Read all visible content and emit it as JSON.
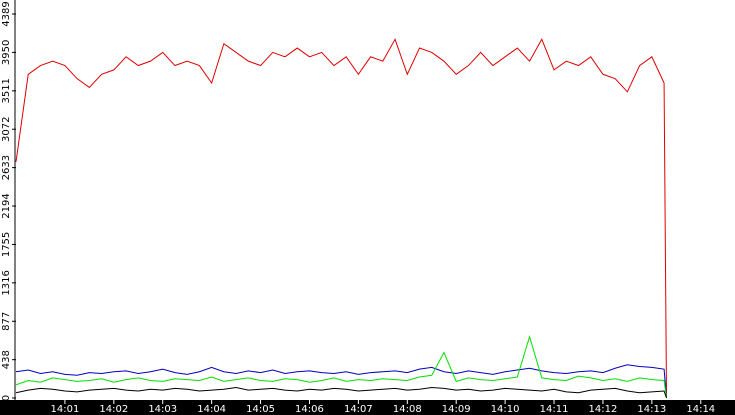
{
  "chart_data": {
    "type": "line",
    "x": [
      0,
      0.25,
      0.5,
      0.75,
      1,
      1.25,
      1.5,
      1.75,
      2,
      2.25,
      2.5,
      2.75,
      3,
      3.25,
      3.5,
      3.75,
      4,
      4.25,
      4.5,
      4.75,
      5,
      5.25,
      5.5,
      5.75,
      6,
      6.25,
      6.5,
      6.75,
      7,
      7.25,
      7.5,
      7.75,
      8,
      8.25,
      8.5,
      8.75,
      9,
      9.25,
      9.5,
      9.75,
      10,
      10.25,
      10.5,
      10.75,
      11,
      11.25,
      11.5,
      11.75,
      12,
      12.25,
      12.5,
      12.75,
      13,
      13.25,
      13.3
    ],
    "series": [
      {
        "color": "#e00000",
        "values": [
          2700,
          3700,
          3800,
          3850,
          3800,
          3650,
          3550,
          3700,
          3750,
          3900,
          3800,
          3850,
          3950,
          3800,
          3850,
          3800,
          3600,
          4050,
          3950,
          3850,
          3800,
          3950,
          3900,
          4000,
          3900,
          3950,
          3800,
          3900,
          3700,
          3900,
          3850,
          4100,
          3700,
          4000,
          3950,
          3850,
          3700,
          3800,
          3950,
          3800,
          3900,
          4000,
          3850,
          4100,
          3750,
          3850,
          3800,
          3900,
          3700,
          3650,
          3500,
          3800,
          3900,
          3600,
          0
        ]
      },
      {
        "color": "#0000c0",
        "values": [
          300,
          320,
          280,
          300,
          270,
          260,
          290,
          280,
          300,
          310,
          280,
          300,
          330,
          290,
          270,
          300,
          350,
          300,
          280,
          310,
          290,
          320,
          280,
          300,
          310,
          290,
          280,
          300,
          270,
          290,
          300,
          310,
          290,
          330,
          350,
          300,
          280,
          310,
          290,
          270,
          300,
          320,
          340,
          310,
          290,
          280,
          300,
          310,
          290,
          340,
          380,
          360,
          350,
          330,
          0
        ]
      },
      {
        "color": "#00e000",
        "values": [
          150,
          200,
          180,
          230,
          210,
          190,
          200,
          220,
          180,
          210,
          230,
          200,
          190,
          220,
          210,
          200,
          240,
          190,
          210,
          230,
          200,
          190,
          220,
          210,
          180,
          200,
          230,
          190,
          210,
          200,
          220,
          210,
          200,
          240,
          260,
          520,
          190,
          230,
          210,
          200,
          220,
          240,
          700,
          230,
          210,
          200,
          250,
          230,
          200,
          220,
          190,
          230,
          210,
          200,
          0
        ]
      },
      {
        "color": "#000000",
        "values": [
          60,
          90,
          110,
          100,
          80,
          70,
          90,
          100,
          110,
          90,
          80,
          100,
          90,
          110,
          100,
          80,
          90,
          100,
          120,
          90,
          100,
          110,
          90,
          80,
          100,
          90,
          110,
          100,
          80,
          90,
          100,
          110,
          90,
          100,
          120,
          110,
          90,
          100,
          80,
          90,
          110,
          100,
          90,
          80,
          100,
          70,
          60,
          90,
          100,
          110,
          80,
          60,
          70,
          80,
          0
        ]
      }
    ],
    "xlim": [
      0,
      14.7
    ],
    "xticks": [
      {
        "value": 1,
        "label": "14:01"
      },
      {
        "value": 2,
        "label": "14:02"
      },
      {
        "value": 3,
        "label": "14:03"
      },
      {
        "value": 4,
        "label": "14:04"
      },
      {
        "value": 5,
        "label": "14:05"
      },
      {
        "value": 6,
        "label": "14:06"
      },
      {
        "value": 7,
        "label": "14:07"
      },
      {
        "value": 8,
        "label": "14:08"
      },
      {
        "value": 9,
        "label": "14:09"
      },
      {
        "value": 10,
        "label": "14:10"
      },
      {
        "value": 11,
        "label": "14:11"
      },
      {
        "value": 12,
        "label": "14:12"
      },
      {
        "value": 13,
        "label": "14:13"
      },
      {
        "value": 14,
        "label": "14:14"
      }
    ],
    "ylim": [
      0,
      4389
    ],
    "yticks": [
      0,
      438,
      877,
      1316,
      1755,
      2194,
      2633,
      3072,
      3511,
      3950,
      4389
    ]
  }
}
